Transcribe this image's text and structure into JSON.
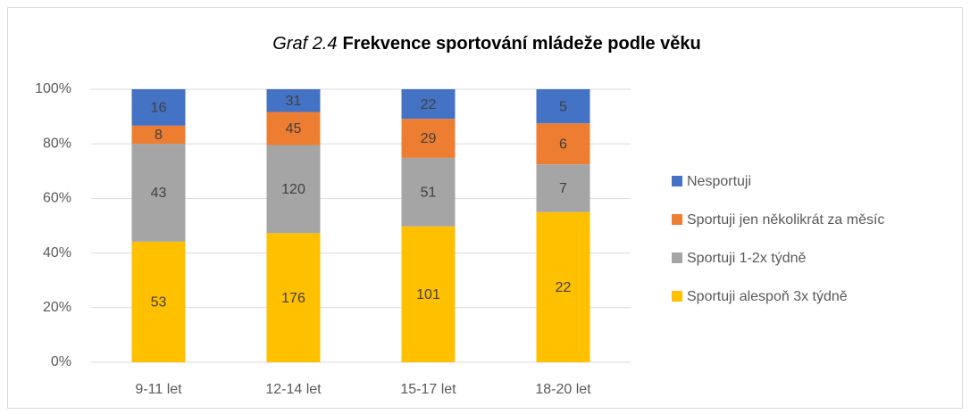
{
  "chart_data": {
    "type": "bar",
    "stacked": "percent",
    "title_number": "Graf 2.4",
    "title": "Frekvence sportování mládeže podle věku",
    "categories": [
      "9-11 let",
      "12-14 let",
      "15-17 let",
      "18-20 let"
    ],
    "series": [
      {
        "name": "Sportuji alespoň 3x týdně",
        "color": "#ffc000",
        "values": [
          53,
          176,
          101,
          22
        ]
      },
      {
        "name": "Sportuji 1-2x týdně",
        "color": "#a5a5a5",
        "values": [
          43,
          120,
          51,
          7
        ]
      },
      {
        "name": "Sportuji jen několikrát za měsíc",
        "color": "#ed7d31",
        "values": [
          8,
          45,
          29,
          6
        ]
      },
      {
        "name": "Nesportuji",
        "color": "#4472c4",
        "values": [
          16,
          31,
          22,
          5
        ]
      }
    ],
    "ylim": [
      0,
      100
    ],
    "yticks": [
      {
        "value": 0,
        "label": "0%"
      },
      {
        "value": 20,
        "label": "20%"
      },
      {
        "value": 40,
        "label": "40%"
      },
      {
        "value": 60,
        "label": "60%"
      },
      {
        "value": 80,
        "label": "80%"
      },
      {
        "value": 100,
        "label": "100%"
      }
    ],
    "grid": true,
    "legend": "right"
  }
}
